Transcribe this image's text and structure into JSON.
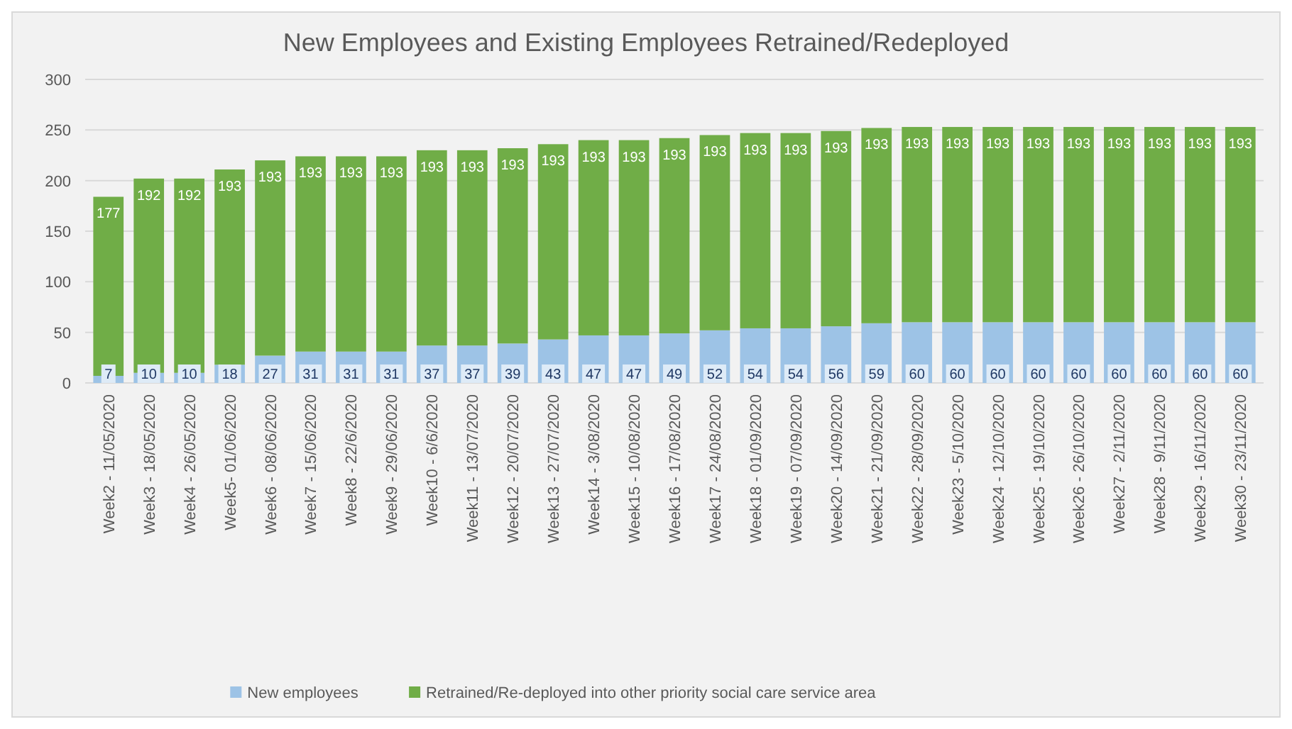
{
  "chart_data": {
    "type": "bar",
    "title": "New Employees and Existing Employees Retrained/Redeployed",
    "stacked": true,
    "data_labels": true,
    "grid": "y",
    "legend": "bottom",
    "categories": [
      "Week2 - 11/05/2020",
      "Week3 - 18/05/2020",
      "Week4 - 26/05/2020",
      "Week5- 01/06/2020",
      "Week6 - 08/06/2020",
      "Week7 - 15/06/2020",
      "Week8 - 22/6/2020",
      "Week9 - 29/06/2020",
      "Week10 - 6/6/2020",
      "Week11 - 13/07/2020",
      "Week12 - 20/07/2020",
      "Week13 - 27/07/2020",
      "Week14 - 3/08/2020",
      "Week15 - 10/08/2020",
      "Week16 - 17/08/2020",
      "Week17 - 24/08/2020",
      "Week18 - 01/09/2020",
      "Week19 - 07/09/2020",
      "Week20 - 14/09/2020",
      "Week21 - 21/09/2020",
      "Week22 - 28/09/2020",
      "Week23 - 5/10/2020",
      "Week24 - 12/10/2020",
      "Week25 - 19/10/2020",
      "Week26 - 26/10/2020",
      "Week27 - 2/11/2020",
      "Week28 - 9/11/2020",
      "Week29 - 16/11/2020",
      "Week30 - 23/11/2020"
    ],
    "ylim": [
      0,
      300
    ],
    "yticks": [
      0,
      50,
      100,
      150,
      200,
      250,
      300
    ],
    "series": [
      {
        "name": "New employees",
        "color": "#9dc3e6",
        "values": [
          7,
          10,
          10,
          18,
          27,
          31,
          31,
          31,
          37,
          37,
          39,
          43,
          47,
          47,
          49,
          52,
          54,
          54,
          56,
          59,
          60,
          60,
          60,
          60,
          60,
          60,
          60,
          60,
          60
        ]
      },
      {
        "name": "Retrained/Re-deployed into other priority social care service area",
        "color": "#70ad47",
        "values": [
          177,
          192,
          192,
          193,
          193,
          193,
          193,
          193,
          193,
          193,
          193,
          193,
          193,
          193,
          193,
          193,
          193,
          193,
          193,
          193,
          193,
          193,
          193,
          193,
          193,
          193,
          193,
          193,
          193
        ]
      }
    ]
  }
}
